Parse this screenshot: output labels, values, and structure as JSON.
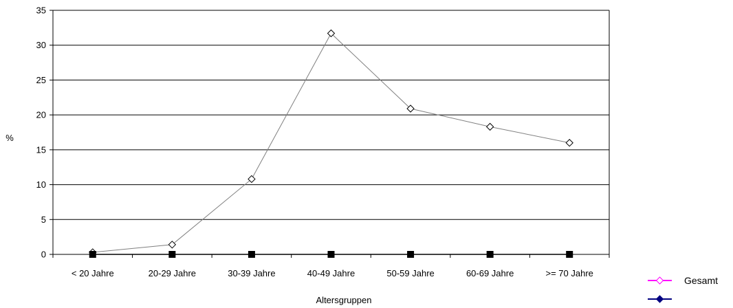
{
  "chart_data": {
    "type": "line",
    "title": "",
    "xlabel": "Altersgruppen",
    "ylabel": "%",
    "ylim": [
      0,
      35
    ],
    "yticks": [
      0,
      5,
      10,
      15,
      20,
      25,
      30,
      35
    ],
    "grid": "horizontal",
    "legend_position": "bottom-right",
    "categories": [
      "< 20 Jahre",
      "20-29 Jahre",
      "30-39 Jahre",
      "40-49 Jahre",
      "50-59 Jahre",
      "60-69 Jahre",
      ">= 70 Jahre"
    ],
    "series": [
      {
        "name": "Gesamt",
        "marker": "diamond-open",
        "line_color": "#808080",
        "legend_color": "#ff00ff",
        "values": [
          0.3,
          1.4,
          10.8,
          31.7,
          20.9,
          18.3,
          16.0
        ]
      },
      {
        "name": "",
        "marker": "square-filled",
        "line_color": "#000000",
        "legend_color": "#000080",
        "values": [
          0,
          0,
          0,
          0,
          0,
          0,
          0
        ]
      }
    ]
  }
}
